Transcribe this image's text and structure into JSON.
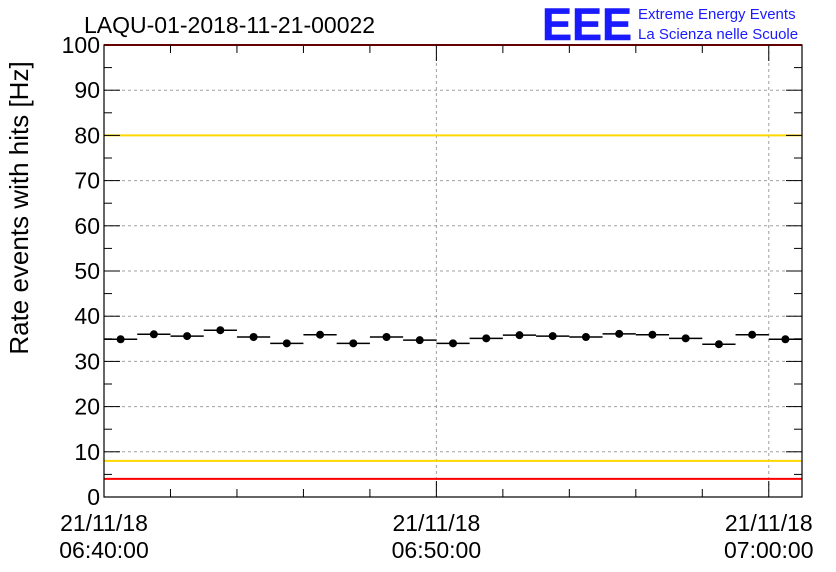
{
  "header": {
    "run_title": "LAQU-01-2018-11-21-00022",
    "logo_text": "EEE",
    "logo_line1": "Extreme Energy Events",
    "logo_line2": "La Scienza nelle Scuole"
  },
  "colors": {
    "logo_blue": "#1a1aff",
    "threshold_red": "#ff0000",
    "threshold_yellow": "#ffd700",
    "marker": "#000000",
    "grid": "#a0a0a0"
  },
  "chart_data": {
    "type": "scatter",
    "title": "LAQU-01-2018-11-21-00022",
    "ylabel": "Rate events with hits [Hz]",
    "xlabel": "",
    "ylim": [
      0,
      100
    ],
    "yticks": [
      "0",
      "10",
      "20",
      "30",
      "40",
      "50",
      "60",
      "70",
      "80",
      "90",
      "100"
    ],
    "xticks": [
      {
        "date": "21/11/18",
        "time": "06:40:00"
      },
      {
        "date": "21/11/18",
        "time": "06:50:00"
      },
      {
        "date": "21/11/18",
        "time": "07:00:00"
      }
    ],
    "x_range": [
      "06:40:00",
      "07:01:00"
    ],
    "bin_width_seconds": 60,
    "grid": true,
    "points": [
      {
        "x": "06:40:30",
        "y": 34.9
      },
      {
        "x": "06:41:30",
        "y": 36.0
      },
      {
        "x": "06:42:30",
        "y": 35.6
      },
      {
        "x": "06:43:30",
        "y": 36.9
      },
      {
        "x": "06:44:30",
        "y": 35.4
      },
      {
        "x": "06:45:30",
        "y": 34.0
      },
      {
        "x": "06:46:30",
        "y": 35.9
      },
      {
        "x": "06:47:30",
        "y": 34.0
      },
      {
        "x": "06:48:30",
        "y": 35.4
      },
      {
        "x": "06:49:30",
        "y": 34.7
      },
      {
        "x": "06:50:30",
        "y": 34.0
      },
      {
        "x": "06:51:30",
        "y": 35.1
      },
      {
        "x": "06:52:30",
        "y": 35.8
      },
      {
        "x": "06:53:30",
        "y": 35.6
      },
      {
        "x": "06:54:30",
        "y": 35.4
      },
      {
        "x": "06:55:30",
        "y": 36.1
      },
      {
        "x": "06:56:30",
        "y": 35.9
      },
      {
        "x": "06:57:30",
        "y": 35.1
      },
      {
        "x": "06:58:30",
        "y": 33.8
      },
      {
        "x": "06:59:30",
        "y": 35.9
      },
      {
        "x": "07:00:30",
        "y": 34.9
      }
    ],
    "threshold_lines": [
      {
        "y": 100,
        "color": "#ff0000"
      },
      {
        "y": 80,
        "color": "#ffd700"
      },
      {
        "y": 8,
        "color": "#ffd700"
      },
      {
        "y": 4,
        "color": "#ff0000"
      }
    ]
  }
}
